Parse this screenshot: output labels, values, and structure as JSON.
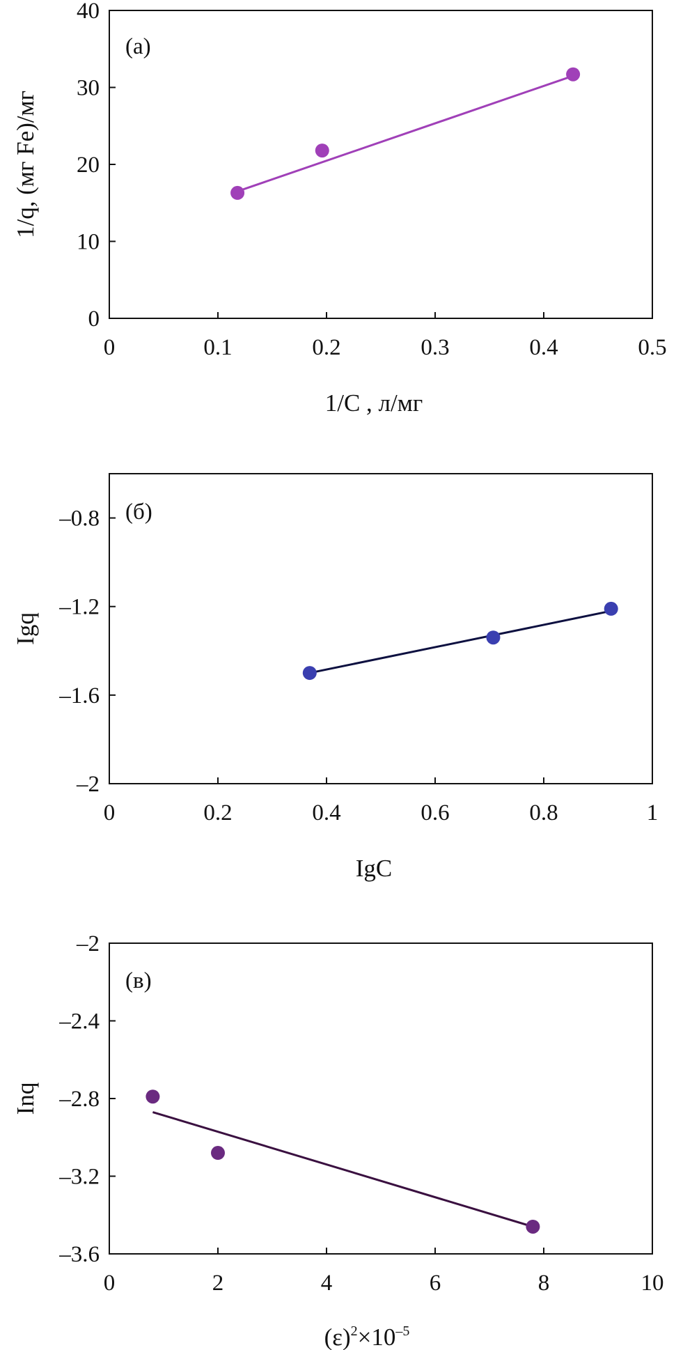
{
  "chart_data": [
    {
      "type": "scatter",
      "panel_label": "(а)",
      "xlabel": "1/C , л/мг",
      "ylabel": "1/q, (мг Fe)/мг",
      "xlim": [
        0,
        0.5
      ],
      "ylim": [
        0,
        40
      ],
      "x_ticks": [
        0,
        0.1,
        0.2,
        0.3,
        0.4,
        0.5
      ],
      "x_tick_labels": [
        "0",
        "0.1",
        "0.2",
        "0.3",
        "0.4",
        "0.5"
      ],
      "y_ticks": [
        0,
        10,
        20,
        30,
        40
      ],
      "y_tick_labels": [
        "0",
        "10",
        "20",
        "30",
        "40"
      ],
      "grid": false,
      "marker_color": "#a040b8",
      "line_color": "#a040b8",
      "series": [
        {
          "x": [
            0.118,
            0.196,
            0.427
          ],
          "y": [
            16.3,
            21.8,
            31.7
          ]
        }
      ],
      "fit_line": {
        "x": [
          0.118,
          0.427
        ],
        "y": [
          16.5,
          31.5
        ]
      }
    },
    {
      "type": "scatter",
      "panel_label": "(б)",
      "xlabel": "IgC",
      "ylabel": "Igq",
      "xlim": [
        0,
        1
      ],
      "ylim": [
        -2,
        -0.6
      ],
      "x_ticks": [
        0,
        0.2,
        0.4,
        0.6,
        0.8,
        1
      ],
      "x_tick_labels": [
        "0",
        "0.2",
        "0.4",
        "0.6",
        "0.8",
        "1"
      ],
      "y_ticks": [
        -2,
        -1.6,
        -1.2,
        -0.8
      ],
      "y_tick_labels": [
        "–2",
        "–1.6",
        "–1.2",
        "–0.8"
      ],
      "grid": false,
      "marker_color": "#3a3fb0",
      "line_color": "#0d1040",
      "series": [
        {
          "x": [
            0.369,
            0.707,
            0.924
          ],
          "y": [
            -1.5,
            -1.34,
            -1.21
          ]
        }
      ],
      "fit_line": {
        "x": [
          0.369,
          0.924
        ],
        "y": [
          -1.5,
          -1.22
        ]
      }
    },
    {
      "type": "scatter",
      "panel_label": "(в)",
      "xlabel_base": "(ε)",
      "xlabel_sup1": "2",
      "xlabel_mid": "×10",
      "xlabel_sup2": "–5",
      "ylabel": "Inq",
      "xlim": [
        0,
        10
      ],
      "ylim": [
        -3.6,
        -2
      ],
      "x_ticks": [
        0,
        2,
        4,
        6,
        8,
        10
      ],
      "x_tick_labels": [
        "0",
        "2",
        "4",
        "6",
        "8",
        "10"
      ],
      "y_ticks": [
        -3.6,
        -3.2,
        -2.8,
        -2.4,
        -2
      ],
      "y_tick_labels": [
        "–3.6",
        "–3.2",
        "–2.8",
        "–2.4",
        "–2"
      ],
      "grid": false,
      "marker_color": "#6a2a80",
      "line_color": "#3a1040",
      "series": [
        {
          "x": [
            0.8,
            2.0,
            7.8
          ],
          "y": [
            -2.79,
            -3.08,
            -3.46
          ]
        }
      ],
      "fit_line": {
        "x": [
          0.8,
          7.8
        ],
        "y": [
          -2.87,
          -3.46
        ]
      }
    }
  ]
}
